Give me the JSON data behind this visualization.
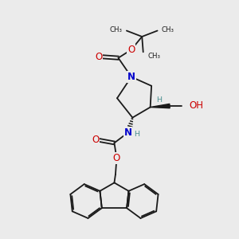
{
  "background_color": "#ebebeb",
  "bond_color": "#1a1a1a",
  "N_color": "#0000cc",
  "O_color": "#cc0000",
  "H_color": "#4a9090",
  "figsize": [
    3.0,
    3.0
  ],
  "dpi": 100,
  "xlim": [
    0,
    10
  ],
  "ylim": [
    0,
    10
  ]
}
